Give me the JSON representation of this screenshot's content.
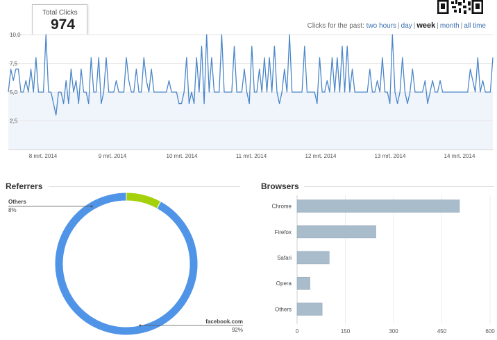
{
  "header": {
    "total_clicks_label": "Total Clicks",
    "total_clicks_value": "974"
  },
  "period": {
    "prefix": "Clicks for the past:",
    "options": [
      "two hours",
      "day",
      "week",
      "month",
      "all time"
    ],
    "active": "week"
  },
  "referrers": {
    "title": "Referrers"
  },
  "browsers": {
    "title": "Browsers"
  },
  "icons": {
    "qr": "qr-code-icon"
  },
  "colors": {
    "line": "#4a86c8",
    "line_fill": "#f0f4fb",
    "donut_main": "#5094e8",
    "donut_other": "#a4d10c",
    "bar": "#a8bccc",
    "active_link": "#222222",
    "link": "#3a6fb0"
  },
  "chart_data": [
    {
      "type": "line",
      "x_tick_labels": [
        "8 mrt. 2014",
        "9 mrt. 2014",
        "10 mrt. 2014",
        "11 mrt. 2014",
        "12 mrt. 2014",
        "13 mrt. 2014",
        "14 mrt. 2014"
      ],
      "y_tick_labels": [
        "2,5",
        "5,0",
        "7,5",
        "10,0"
      ],
      "ylim": [
        0,
        10
      ],
      "grid": true,
      "series": [
        {
          "values": [
            5,
            7,
            6,
            7,
            7,
            5,
            5,
            6,
            5,
            7,
            5,
            8,
            5,
            5,
            5,
            10,
            5,
            5,
            4,
            3,
            5,
            5,
            4,
            6,
            4,
            7,
            5,
            6,
            4,
            7,
            5,
            5,
            4,
            8,
            5,
            5,
            8,
            4,
            5,
            8,
            5,
            5,
            5,
            6,
            5,
            5,
            5,
            8,
            6,
            5,
            5,
            7,
            5,
            5,
            8,
            6,
            5,
            7,
            5,
            5,
            5,
            5,
            5,
            5,
            6,
            5,
            5,
            5,
            4,
            4,
            5,
            8,
            4,
            5,
            4,
            8,
            5,
            9,
            4,
            10,
            5,
            8,
            5,
            5,
            5,
            10,
            5,
            5,
            5,
            5,
            9,
            5,
            5,
            5,
            7,
            5,
            4,
            9,
            5,
            5,
            7,
            5,
            8,
            5,
            8,
            5,
            9,
            5,
            4,
            5,
            7,
            5,
            10,
            5,
            5,
            5,
            5,
            5,
            9,
            5,
            5,
            5,
            5,
            4,
            8,
            5,
            5,
            6,
            5,
            8,
            5,
            8,
            5,
            9,
            5,
            9,
            5,
            7,
            5,
            5,
            5,
            5,
            5,
            5,
            7,
            5,
            5,
            6,
            5,
            8,
            5,
            5,
            4,
            10,
            5,
            4,
            5,
            8,
            5,
            4,
            5,
            7,
            5,
            5,
            5,
            5,
            6,
            4,
            5,
            6,
            5,
            5,
            6,
            5,
            5,
            5,
            5,
            5,
            5,
            5,
            5,
            5,
            5,
            5,
            7,
            6,
            5,
            8,
            5,
            6,
            5,
            5,
            5,
            8
          ]
        }
      ]
    },
    {
      "type": "pie",
      "title": "Referrers",
      "labels": [
        "facebook.com",
        "Others"
      ],
      "values": [
        92,
        8
      ],
      "value_labels": [
        "92%",
        "8%"
      ]
    },
    {
      "type": "bar",
      "title": "Browsers",
      "categories": [
        "Chrome",
        "Firefox",
        "Safari",
        "Opera",
        "Others"
      ],
      "values": [
        505,
        245,
        100,
        40,
        78
      ],
      "xlim": [
        0,
        600
      ],
      "x_tick_labels": [
        "0",
        "150",
        "300",
        "450",
        "600"
      ]
    }
  ]
}
